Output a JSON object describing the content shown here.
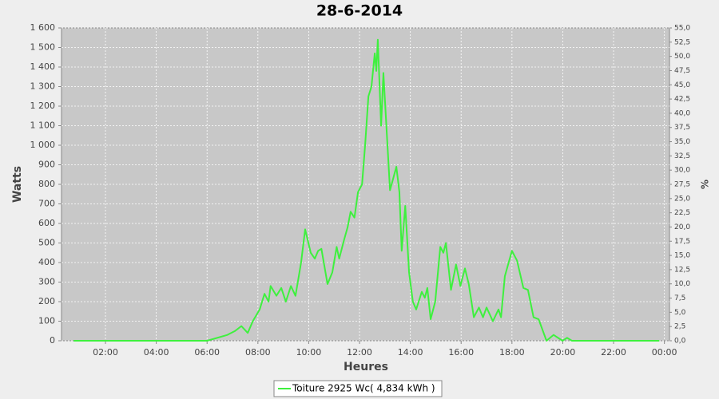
{
  "chart_data": {
    "type": "line",
    "title": "28-6-2014",
    "y_label": "Watts",
    "x_label": "Heures",
    "y2_label": "%",
    "xlim": [
      0.27,
      24.2
    ],
    "ylim": [
      0,
      1600
    ],
    "y2lim": [
      0,
      55
    ],
    "grid": true,
    "background": "#c8c8c8",
    "xticks": [
      {
        "value": 2,
        "label": "02:00"
      },
      {
        "value": 4,
        "label": "04:00"
      },
      {
        "value": 6,
        "label": "06:00"
      },
      {
        "value": 8,
        "label": "08:00"
      },
      {
        "value": 10,
        "label": "10:00"
      },
      {
        "value": 12,
        "label": "12:00"
      },
      {
        "value": 14,
        "label": "14:00"
      },
      {
        "value": 16,
        "label": "16:00"
      },
      {
        "value": 18,
        "label": "18:00"
      },
      {
        "value": 20,
        "label": "20:00"
      },
      {
        "value": 22,
        "label": "22:00"
      },
      {
        "value": 24,
        "label": "00:00"
      }
    ],
    "yticks": [
      0,
      100,
      200,
      300,
      400,
      500,
      600,
      700,
      800,
      900,
      {
        "value": 1000,
        "label": "1 000"
      },
      {
        "value": 1100,
        "label": "1 100"
      },
      {
        "value": 1200,
        "label": "1 200"
      },
      {
        "value": 1300,
        "label": "1 300"
      },
      {
        "value": 1400,
        "label": "1 400"
      },
      {
        "value": 1500,
        "label": "1 500"
      },
      {
        "value": 1600,
        "label": "1 600"
      }
    ],
    "y2ticks": [
      {
        "value": 0,
        "label": "0,0"
      },
      {
        "value": 2.5,
        "label": "2,5"
      },
      {
        "value": 5,
        "label": "5,0"
      },
      {
        "value": 7.5,
        "label": "7,5"
      },
      {
        "value": 10,
        "label": "10,0"
      },
      {
        "value": 12.5,
        "label": "12,5"
      },
      {
        "value": 15,
        "label": "15,0"
      },
      {
        "value": 17.5,
        "label": "17,5"
      },
      {
        "value": 20,
        "label": "20,0"
      },
      {
        "value": 22.5,
        "label": "22,5"
      },
      {
        "value": 25,
        "label": "25,0"
      },
      {
        "value": 27.5,
        "label": "27,5"
      },
      {
        "value": 30,
        "label": "30,0"
      },
      {
        "value": 32.5,
        "label": "32,5"
      },
      {
        "value": 35,
        "label": "35,0"
      },
      {
        "value": 37.5,
        "label": "37,5"
      },
      {
        "value": 40,
        "label": "40,0"
      },
      {
        "value": 42.5,
        "label": "42,5"
      },
      {
        "value": 45,
        "label": "45,0"
      },
      {
        "value": 47.5,
        "label": "47,5"
      },
      {
        "value": 50,
        "label": "50,0"
      },
      {
        "value": 52.5,
        "label": "52,5"
      },
      {
        "value": 55,
        "label": "55,0"
      }
    ],
    "x": [
      0.75,
      6.0,
      6.8,
      7.1,
      7.35,
      7.6,
      7.8,
      8.07,
      8.26,
      8.42,
      8.5,
      8.73,
      8.92,
      9.1,
      9.3,
      9.48,
      9.7,
      9.86,
      10.08,
      10.24,
      10.37,
      10.5,
      10.74,
      10.93,
      11.1,
      11.2,
      11.4,
      11.53,
      11.65,
      11.8,
      11.94,
      12.1,
      12.22,
      12.35,
      12.47,
      12.6,
      12.66,
      12.72,
      12.85,
      12.94,
      13.1,
      13.2,
      13.45,
      13.57,
      13.66,
      13.8,
      13.95,
      14.1,
      14.23,
      14.45,
      14.57,
      14.67,
      14.8,
      14.98,
      15.18,
      15.3,
      15.4,
      15.6,
      15.8,
      15.97,
      16.15,
      16.3,
      16.5,
      16.7,
      16.86,
      17.0,
      17.25,
      17.47,
      17.57,
      17.72,
      18.0,
      18.2,
      18.45,
      18.63,
      18.85,
      19.05,
      19.36,
      19.64,
      19.99,
      20.17,
      20.36,
      23.8
    ],
    "series": [
      {
        "name": "Toiture 2925 Wc( 4,834 kWh )",
        "color": "#3ef03e",
        "values": [
          0,
          0,
          30,
          50,
          75,
          40,
          100,
          160,
          240,
          200,
          280,
          230,
          270,
          200,
          280,
          230,
          400,
          570,
          450,
          420,
          460,
          470,
          290,
          350,
          480,
          420,
          520,
          580,
          660,
          630,
          760,
          800,
          1000,
          1250,
          1300,
          1470,
          1380,
          1540,
          1100,
          1370,
          1000,
          770,
          890,
          760,
          460,
          690,
          350,
          200,
          160,
          250,
          220,
          270,
          110,
          200,
          480,
          450,
          500,
          260,
          390,
          280,
          370,
          290,
          120,
          170,
          120,
          170,
          100,
          160,
          120,
          330,
          460,
          410,
          270,
          260,
          120,
          110,
          0,
          30,
          0,
          15,
          0,
          0
        ]
      }
    ]
  }
}
